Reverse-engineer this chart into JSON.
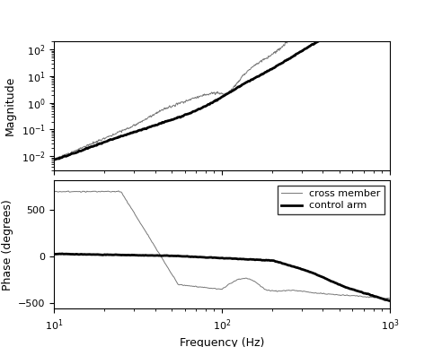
{
  "title": "",
  "xlabel": "Frequency (Hz)",
  "ylabel_top": "Magnitude",
  "ylabel_bottom": "Phase (degrees)",
  "freq_min": 10,
  "freq_max": 1000,
  "mag_ylim": [
    0.003,
    200
  ],
  "phase_ylim": [
    -560,
    820
  ],
  "phase_yticks": [
    -500,
    0,
    500
  ],
  "background_color": "#ffffff",
  "thin_color": "#777777",
  "thick_color": "#000000",
  "legend_labels": [
    "cross member",
    "control arm"
  ],
  "thin_linewidth": 0.7,
  "thick_linewidth": 2.0
}
